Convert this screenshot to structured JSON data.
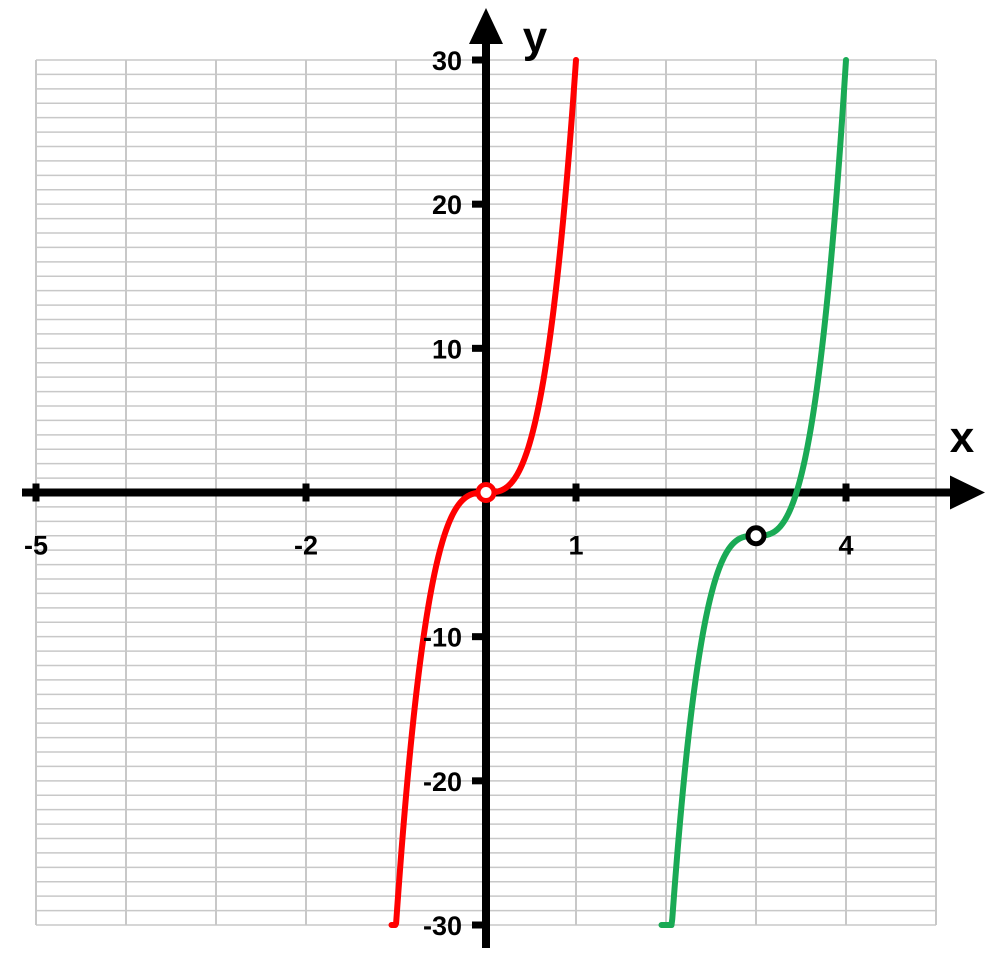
{
  "chart_data": {
    "type": "line",
    "title": "",
    "xlabel": "x",
    "ylabel": "y",
    "xlim": [
      -5,
      5
    ],
    "ylim": [
      -30,
      30
    ],
    "grid": true,
    "x_ticks": [
      {
        "value": -5,
        "label": "-5"
      },
      {
        "value": -2,
        "label": "-2"
      },
      {
        "value": 1,
        "label": "1"
      },
      {
        "value": 4,
        "label": "4"
      }
    ],
    "y_ticks": [
      {
        "value": 30,
        "label": "30"
      },
      {
        "value": 20,
        "label": "20"
      },
      {
        "value": 10,
        "label": "10"
      },
      {
        "value": -10,
        "label": "-10"
      },
      {
        "value": -20,
        "label": "-20"
      },
      {
        "value": -30,
        "label": "-30"
      }
    ],
    "series": [
      {
        "color": "#ff0000",
        "points": [
          [
            -1.05,
            -30
          ],
          [
            -1.0,
            -26
          ],
          [
            -0.9,
            -21.9
          ],
          [
            -0.8,
            -15.4
          ],
          [
            -0.7,
            -10.3
          ],
          [
            -0.6,
            -6.5
          ],
          [
            -0.5,
            -3.8
          ],
          [
            -0.4,
            -1.9
          ],
          [
            -0.3,
            -0.8
          ],
          [
            -0.2,
            -0.24
          ],
          [
            -0.1,
            -0.03
          ],
          [
            0,
            0
          ],
          [
            0.1,
            0.03
          ],
          [
            0.2,
            0.24
          ],
          [
            0.3,
            0.8
          ],
          [
            0.4,
            1.9
          ],
          [
            0.5,
            3.8
          ],
          [
            0.6,
            6.5
          ],
          [
            0.7,
            10.3
          ],
          [
            0.8,
            15.4
          ],
          [
            0.9,
            21.9
          ],
          [
            1.0,
            30
          ]
        ],
        "marker": {
          "x": 0,
          "y": 0
        }
      },
      {
        "color": "#1aaa55",
        "points": [
          [
            1.95,
            -30
          ],
          [
            2.0,
            -26
          ],
          [
            2.1,
            -21.9
          ],
          [
            2.2,
            -15.4
          ],
          [
            2.3,
            -10.3
          ],
          [
            2.4,
            -6.5
          ],
          [
            2.5,
            -3.8
          ],
          [
            2.6,
            -1.9
          ],
          [
            2.7,
            -0.8
          ],
          [
            2.8,
            -0.24
          ],
          [
            2.9,
            -0.03
          ],
          [
            3.0,
            -3
          ],
          [
            3.1,
            0.03
          ],
          [
            3.2,
            0.24
          ],
          [
            3.3,
            0.8
          ],
          [
            3.4,
            1.9
          ],
          [
            3.5,
            3.8
          ],
          [
            3.6,
            6.5
          ],
          [
            3.7,
            10.3
          ],
          [
            3.8,
            15.4
          ],
          [
            3.9,
            21.9
          ],
          [
            4.0,
            30
          ]
        ],
        "marker": {
          "x": 3,
          "y": -3
        }
      }
    ]
  }
}
